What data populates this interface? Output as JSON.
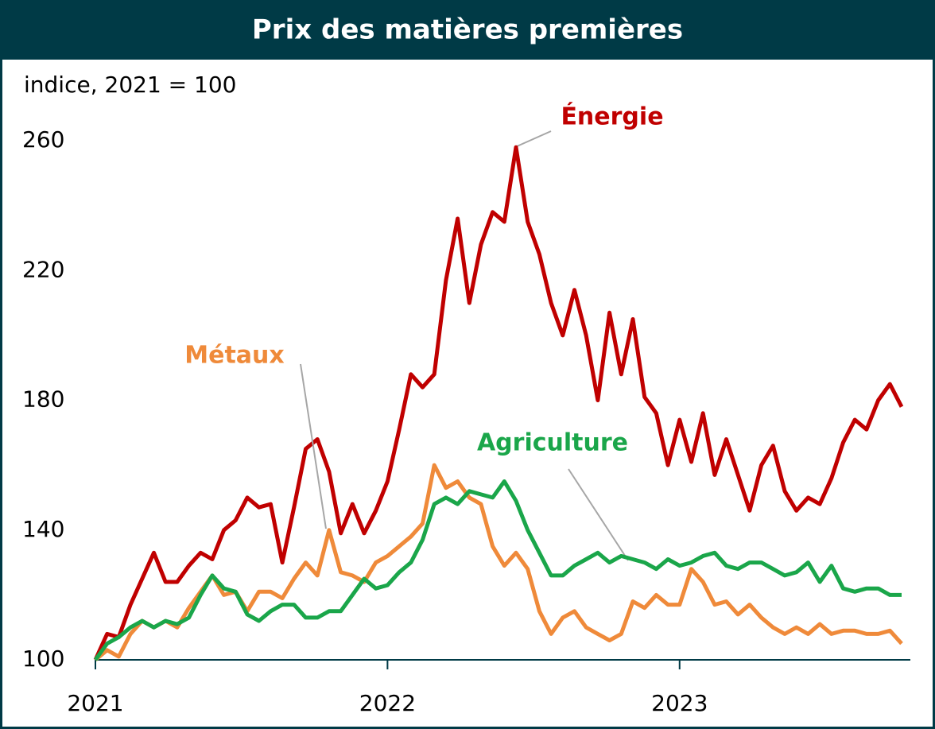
{
  "chart_data": {
    "type": "line",
    "title": "Prix des matières premières",
    "y_axis_label": "indice, 2021 = 100",
    "x": [
      2021,
      2021.04,
      2021.08,
      2021.12,
      2021.16,
      2021.2,
      2021.24,
      2021.28,
      2021.32,
      2021.36,
      2021.4,
      2021.44,
      2021.48,
      2021.52,
      2021.56,
      2021.6,
      2021.64,
      2021.68,
      2021.72,
      2021.76,
      2021.8,
      2021.84,
      2021.88,
      2021.92,
      2021.96,
      2022,
      2022.04,
      2022.08,
      2022.12,
      2022.16,
      2022.2,
      2022.24,
      2022.28,
      2022.32,
      2022.36,
      2022.4,
      2022.44,
      2022.48,
      2022.52,
      2022.56,
      2022.6,
      2022.64,
      2022.68,
      2022.72,
      2022.76,
      2022.8,
      2022.84,
      2022.88,
      2022.92,
      2022.96,
      2023,
      2023.04,
      2023.08,
      2023.12,
      2023.16,
      2023.2,
      2023.24,
      2023.28,
      2023.32,
      2023.36,
      2023.4,
      2023.44,
      2023.48,
      2023.52,
      2023.56,
      2023.6,
      2023.64,
      2023.68,
      2023.72,
      2023.76
    ],
    "series": [
      {
        "name": "Énergie",
        "color": "#c00000",
        "values": [
          100,
          108,
          107,
          117,
          125,
          133,
          124,
          124,
          129,
          133,
          131,
          140,
          143,
          150,
          147,
          148,
          130,
          147,
          165,
          168,
          158,
          139,
          148,
          139,
          146,
          155,
          171,
          188,
          184,
          188,
          217,
          236,
          210,
          228,
          238,
          235,
          258,
          235,
          225,
          210,
          200,
          214,
          200,
          180,
          207,
          188,
          205,
          181,
          176,
          160,
          174,
          161,
          176,
          157,
          168,
          157,
          146,
          160,
          166,
          152,
          146,
          150,
          148,
          156,
          167,
          174,
          171,
          180,
          185,
          178
        ]
      },
      {
        "name": "Métaux",
        "color": "#ef8a3a",
        "values": [
          100,
          103,
          101,
          108,
          112,
          110,
          112,
          110,
          116,
          121,
          126,
          120,
          121,
          115,
          121,
          121,
          119,
          125,
          130,
          126,
          140,
          127,
          126,
          124,
          130,
          132,
          135,
          138,
          142,
          160,
          153,
          155,
          150,
          148,
          135,
          129,
          133,
          128,
          115,
          108,
          113,
          115,
          110,
          108,
          106,
          108,
          118,
          116,
          120,
          117,
          117,
          128,
          124,
          117,
          118,
          114,
          117,
          113,
          110,
          108,
          110,
          108,
          111,
          108,
          109,
          109,
          108,
          108,
          109,
          105
        ]
      },
      {
        "name": "Agriculture",
        "color": "#1aa64a",
        "values": [
          100,
          105,
          107,
          110,
          112,
          110,
          112,
          111,
          113,
          120,
          126,
          122,
          121,
          114,
          112,
          115,
          117,
          117,
          113,
          113,
          115,
          115,
          120,
          125,
          122,
          123,
          127,
          130,
          137,
          148,
          150,
          148,
          152,
          151,
          150,
          155,
          149,
          140,
          133,
          126,
          126,
          129,
          131,
          133,
          130,
          132,
          131,
          130,
          128,
          131,
          129,
          130,
          132,
          133,
          129,
          128,
          130,
          130,
          128,
          126,
          127,
          130,
          124,
          129,
          122,
          121,
          122,
          122,
          120,
          120
        ]
      }
    ],
    "xlim": [
      2021,
      2023.79
    ],
    "xticks": [
      2021,
      2022,
      2023
    ],
    "ylim": [
      100,
      260
    ],
    "yticks": [
      100,
      140,
      180,
      220,
      260
    ],
    "grid": false
  }
}
